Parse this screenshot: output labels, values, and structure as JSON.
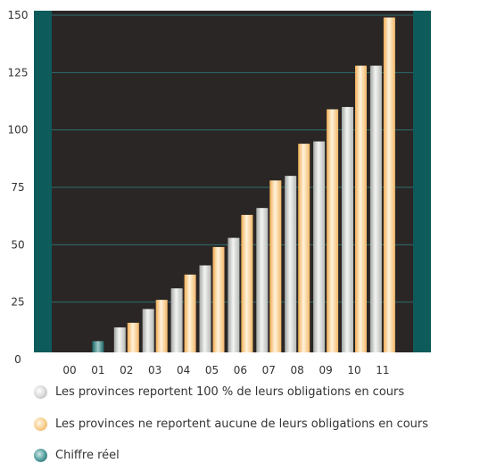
{
  "chart_data": {
    "type": "bar",
    "title": "",
    "xlabel": "",
    "ylabel": "",
    "categories": [
      "00",
      "01",
      "02",
      "03",
      "04",
      "05",
      "06",
      "07",
      "08",
      "09",
      "10",
      "11"
    ],
    "ylim": [
      0,
      150
    ],
    "yticks": [
      0,
      25,
      50,
      75,
      100,
      125,
      150
    ],
    "grid": true,
    "legend_position": "bottom",
    "series": [
      {
        "name": "Les provinces reportent 100 % de leurs obligations en cours",
        "values": [
          null,
          null,
          14,
          22,
          31,
          41,
          53,
          66,
          80,
          95,
          110,
          128
        ],
        "color": "#d8dcd8"
      },
      {
        "name": "Les provinces ne reportent aucune de leurs obligations en cours",
        "values": [
          null,
          null,
          16,
          26,
          37,
          49,
          63,
          78,
          94,
          109,
          128,
          149
        ],
        "color": "#f7c77e"
      },
      {
        "name": "Chiffre réel",
        "values": [
          3,
          8,
          null,
          null,
          null,
          null,
          null,
          null,
          null,
          null,
          null,
          null
        ],
        "color": "#2f7b7b"
      }
    ]
  },
  "colors": {
    "plot_background": "#2a2625",
    "frame_teal": "#0e5b5b",
    "gridline": "#2d6f6f"
  }
}
